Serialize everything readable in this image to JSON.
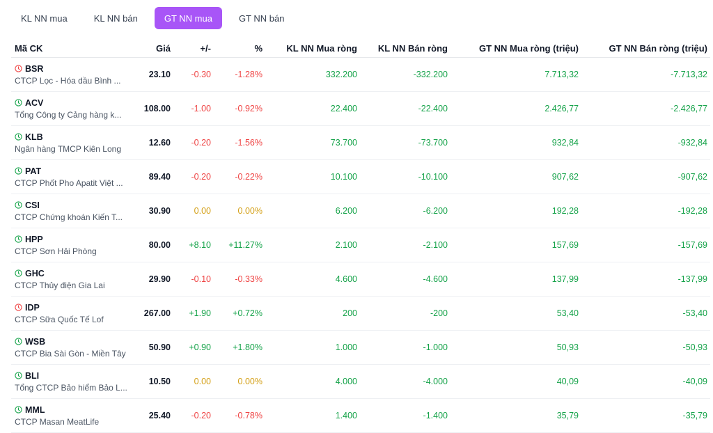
{
  "tabs": [
    {
      "label": "KL NN mua",
      "active": false
    },
    {
      "label": "KL NN bán",
      "active": false
    },
    {
      "label": "GT NN mua",
      "active": true
    },
    {
      "label": "GT NN bán",
      "active": false
    }
  ],
  "columns": [
    "Mã CK",
    "Giá",
    "+/-",
    "%",
    "KL NN Mua ròng",
    "KL NN Bán ròng",
    "GT NN Mua ròng (triệu)",
    "GT NN Bán ròng (triệu)"
  ],
  "colors": {
    "accent": "#a855f7",
    "up": "#16a34a",
    "down": "#ef4444",
    "ref": "#d4a017"
  },
  "rows": [
    {
      "symbol": "BSR",
      "name": "CTCP Lọc - Hóa dầu Bình ...",
      "icon": "clock-red-icon",
      "price": "23.10",
      "change": "-0.30",
      "pct": "-1.28%",
      "dir": "down",
      "kl_mua": "332.200",
      "kl_ban": "-332.200",
      "gt_mua": "7.713,32",
      "gt_ban": "-7.713,32"
    },
    {
      "symbol": "ACV",
      "name": "Tổng Công ty Cảng hàng k...",
      "icon": "clock-green-icon",
      "price": "108.00",
      "change": "-1.00",
      "pct": "-0.92%",
      "dir": "down",
      "kl_mua": "22.400",
      "kl_ban": "-22.400",
      "gt_mua": "2.426,77",
      "gt_ban": "-2.426,77"
    },
    {
      "symbol": "KLB",
      "name": "Ngân hàng TMCP Kiên Long",
      "icon": "clock-green-icon",
      "price": "12.60",
      "change": "-0.20",
      "pct": "-1.56%",
      "dir": "down",
      "kl_mua": "73.700",
      "kl_ban": "-73.700",
      "gt_mua": "932,84",
      "gt_ban": "-932,84"
    },
    {
      "symbol": "PAT",
      "name": "CTCP Phốt Pho Apatit Việt ...",
      "icon": "clock-green-icon",
      "price": "89.40",
      "change": "-0.20",
      "pct": "-0.22%",
      "dir": "down",
      "kl_mua": "10.100",
      "kl_ban": "-10.100",
      "gt_mua": "907,62",
      "gt_ban": "-907,62"
    },
    {
      "symbol": "CSI",
      "name": "CTCP Chứng khoán Kiến T...",
      "icon": "clock-green-icon",
      "price": "30.90",
      "change": "0.00",
      "pct": "0.00%",
      "dir": "ref",
      "kl_mua": "6.200",
      "kl_ban": "-6.200",
      "gt_mua": "192,28",
      "gt_ban": "-192,28"
    },
    {
      "symbol": "HPP",
      "name": "CTCP Sơn Hải Phòng",
      "icon": "clock-green-icon",
      "price": "80.00",
      "change": "+8.10",
      "pct": "+11.27%",
      "dir": "up",
      "kl_mua": "2.100",
      "kl_ban": "-2.100",
      "gt_mua": "157,69",
      "gt_ban": "-157,69"
    },
    {
      "symbol": "GHC",
      "name": "CTCP Thủy điện Gia Lai",
      "icon": "clock-green-icon",
      "price": "29.90",
      "change": "-0.10",
      "pct": "-0.33%",
      "dir": "down",
      "kl_mua": "4.600",
      "kl_ban": "-4.600",
      "gt_mua": "137,99",
      "gt_ban": "-137,99"
    },
    {
      "symbol": "IDP",
      "name": "CTCP Sữa Quốc Tế Lof",
      "icon": "clock-red-icon",
      "price": "267.00",
      "change": "+1.90",
      "pct": "+0.72%",
      "dir": "up",
      "kl_mua": "200",
      "kl_ban": "-200",
      "gt_mua": "53,40",
      "gt_ban": "-53,40"
    },
    {
      "symbol": "WSB",
      "name": "CTCP Bia Sài Gòn - Miền Tây",
      "icon": "clock-green-icon",
      "price": "50.90",
      "change": "+0.90",
      "pct": "+1.80%",
      "dir": "up",
      "kl_mua": "1.000",
      "kl_ban": "-1.000",
      "gt_mua": "50,93",
      "gt_ban": "-50,93"
    },
    {
      "symbol": "BLI",
      "name": "Tổng CTCP Bảo hiểm Bảo L...",
      "icon": "clock-green-icon",
      "price": "10.50",
      "change": "0.00",
      "pct": "0.00%",
      "dir": "ref",
      "kl_mua": "4.000",
      "kl_ban": "-4.000",
      "gt_mua": "40,09",
      "gt_ban": "-40,09"
    },
    {
      "symbol": "MML",
      "name": "CTCP Masan MeatLife",
      "icon": "clock-green-icon",
      "price": "25.40",
      "change": "-0.20",
      "pct": "-0.78%",
      "dir": "down",
      "kl_mua": "1.400",
      "kl_ban": "-1.400",
      "gt_mua": "35,79",
      "gt_ban": "-35,79"
    }
  ]
}
